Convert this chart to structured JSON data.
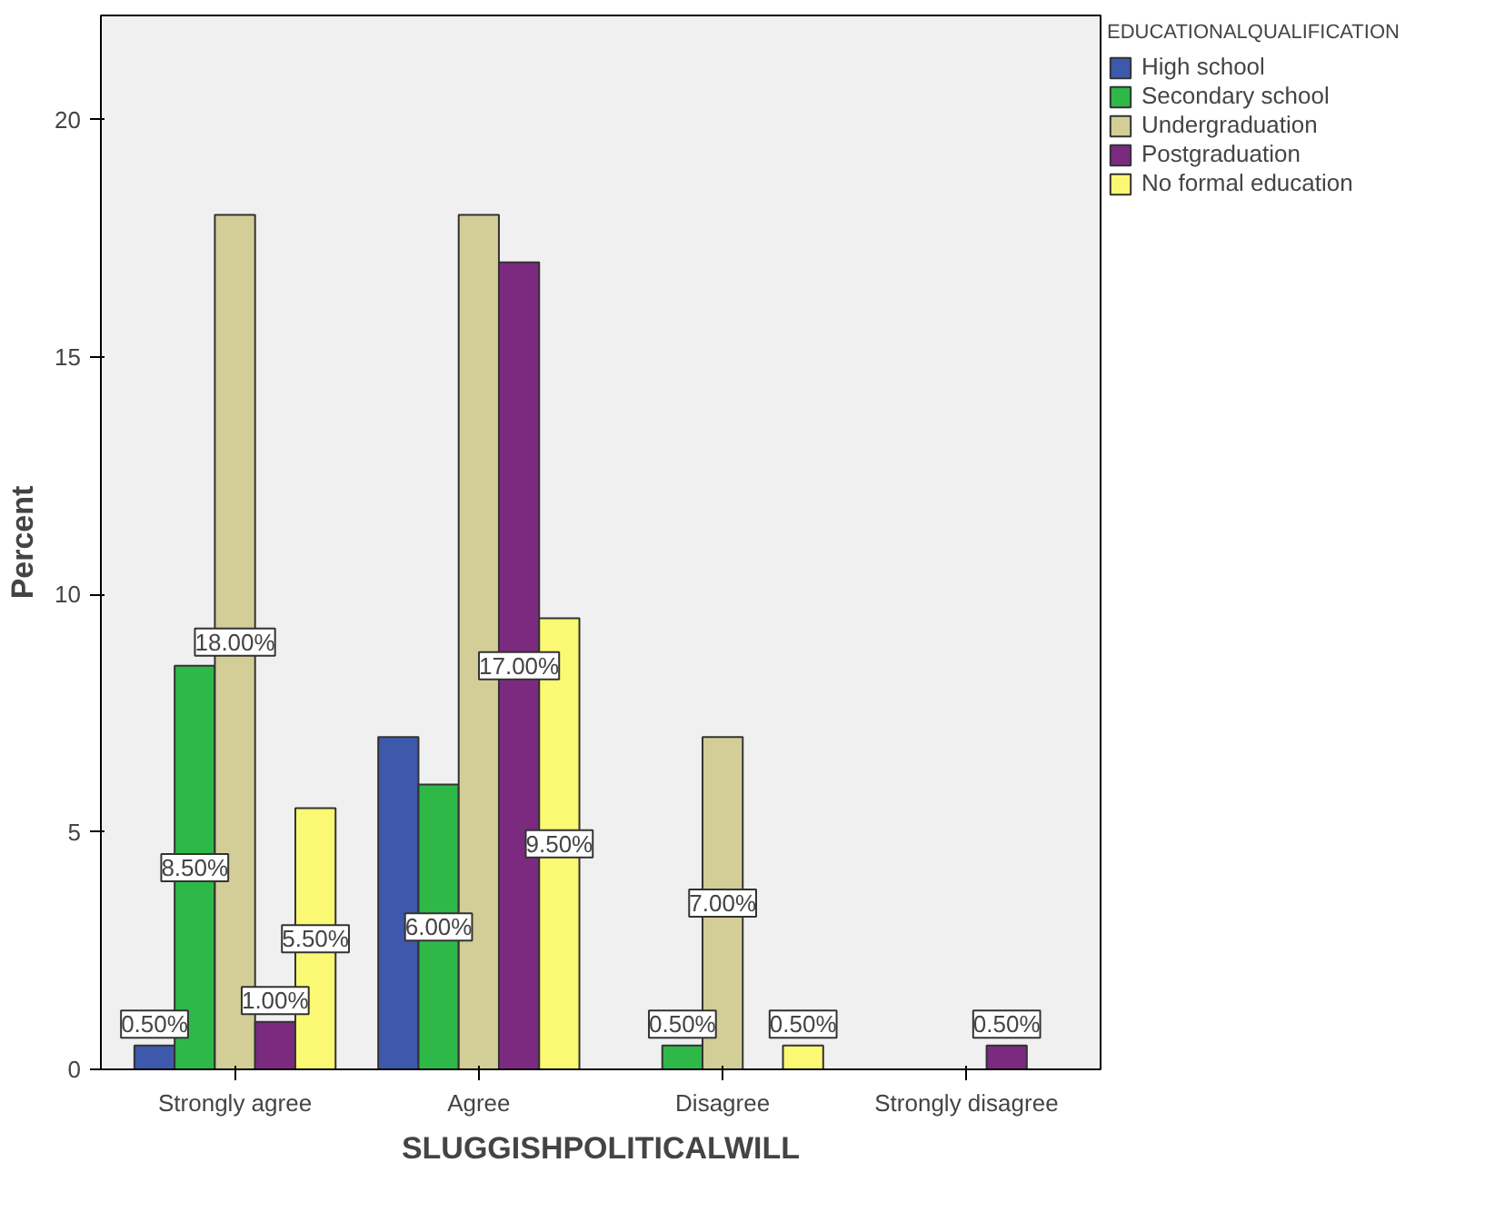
{
  "chart_data": {
    "type": "bar",
    "xlabel": "SLUGGISHPOLITICALWILL",
    "ylabel": "Percent",
    "legend_title": "EDUCATIONALQUALIFICATION",
    "categories": [
      "Strongly agree",
      "Agree",
      "Disagree",
      "Strongly disagree"
    ],
    "series": [
      {
        "name": "High school",
        "color": "#3e58ac",
        "values": [
          0.5,
          7,
          null,
          null
        ],
        "value_labels": [
          "0.50%",
          null,
          null,
          null
        ]
      },
      {
        "name": "Secondary school",
        "color": "#2eb848",
        "values": [
          8.5,
          6,
          0.5,
          null
        ],
        "value_labels": [
          "8.50%",
          "6.00%",
          "0.50%",
          null
        ]
      },
      {
        "name": "Undergraduation",
        "color": "#d3ce97",
        "values": [
          18,
          18,
          7,
          null
        ],
        "value_labels": [
          "18.00%",
          null,
          "7.00%",
          null
        ]
      },
      {
        "name": "Postgraduation",
        "color": "#7b2a7f",
        "values": [
          1,
          17,
          null,
          0.5
        ],
        "value_labels": [
          "1.00%",
          "17.00%",
          null,
          "0.50%"
        ]
      },
      {
        "name": "No formal education",
        "color": "#fbf873",
        "values": [
          5.5,
          9.5,
          0.5,
          null
        ],
        "value_labels": [
          "5.50%",
          "9.50%",
          "0.50%",
          null
        ]
      }
    ],
    "ylim": [
      0,
      22.2
    ],
    "yticks": [
      0,
      5,
      10,
      15,
      20
    ],
    "grid": false,
    "legend": "top right"
  }
}
